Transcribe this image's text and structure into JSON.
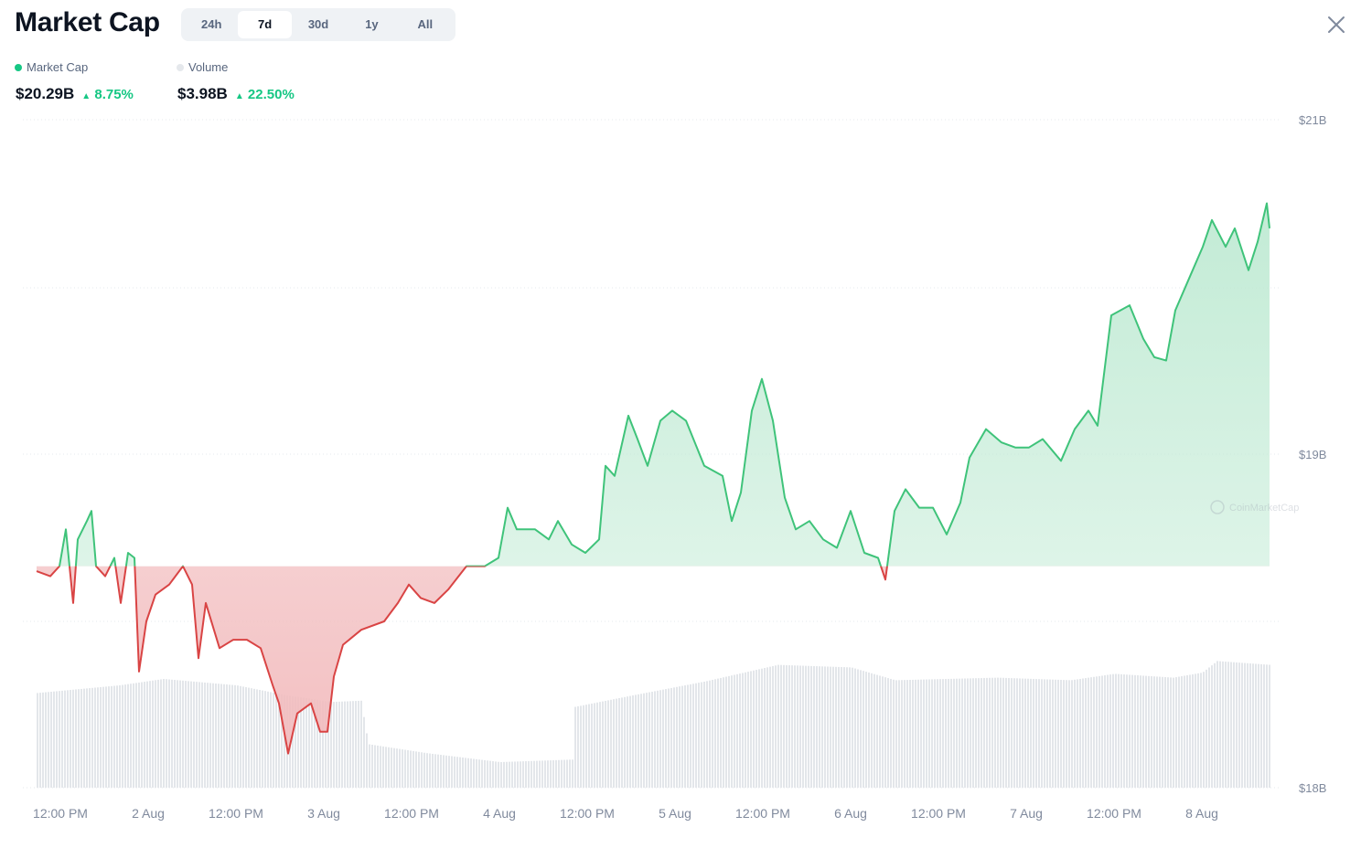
{
  "header": {
    "title": "Market Cap",
    "tabs": [
      "24h",
      "7d",
      "30d",
      "1y",
      "All"
    ],
    "active_tab": "7d"
  },
  "legend": {
    "market_cap": {
      "label": "Market Cap",
      "value": "$20.29B",
      "change": "8.75%",
      "color": "#16c784"
    },
    "volume": {
      "label": "Volume",
      "value": "$3.98B",
      "change": "22.50%",
      "color": "#e5e8ec"
    }
  },
  "colors": {
    "up": "#3fc37a",
    "down": "#d94444",
    "up_fill": "#bfead3",
    "down_fill": "#f2bcbe",
    "volume": "#e3e6ea"
  },
  "watermark": "CoinMarketCap",
  "chart_data": {
    "type": "area",
    "title": "Market Cap",
    "x_unit": "hours since 1 Aug 00:00",
    "y_unit": "USD billions",
    "baseline": 18.33,
    "y_ticks": [
      "$21B",
      "$19B",
      "$18B"
    ],
    "x_ticks": [
      "12:00 PM",
      "2 Aug",
      "12:00 PM",
      "3 Aug",
      "12:00 PM",
      "4 Aug",
      "12:00 PM",
      "5 Aug",
      "12:00 PM",
      "6 Aug",
      "12:00 PM",
      "7 Aug",
      "12:00 PM",
      "8 Aug"
    ],
    "x_tick_hours": [
      12,
      24,
      36,
      48,
      60,
      72,
      84,
      96,
      108,
      120,
      132,
      144,
      156,
      168
    ],
    "market_cap": [
      [
        8.75,
        18.3
      ],
      [
        10.63,
        18.27
      ],
      [
        11.88,
        18.33
      ],
      [
        12.75,
        18.55
      ],
      [
        13.75,
        18.11
      ],
      [
        14.38,
        18.49
      ],
      [
        15.63,
        18.6
      ],
      [
        16.25,
        18.66
      ],
      [
        16.88,
        18.33
      ],
      [
        18.13,
        18.27
      ],
      [
        19.38,
        18.38
      ],
      [
        20.25,
        18.11
      ],
      [
        21.25,
        18.41
      ],
      [
        22.13,
        18.38
      ],
      [
        22.75,
        17.7
      ],
      [
        23.75,
        18.0
      ],
      [
        25.0,
        18.16
      ],
      [
        26.88,
        18.22
      ],
      [
        28.75,
        18.33
      ],
      [
        30.0,
        18.22
      ],
      [
        30.88,
        17.78
      ],
      [
        31.88,
        18.11
      ],
      [
        33.75,
        17.84
      ],
      [
        35.63,
        17.89
      ],
      [
        37.5,
        17.89
      ],
      [
        39.38,
        17.84
      ],
      [
        41.0,
        17.62
      ],
      [
        41.88,
        17.51
      ],
      [
        43.13,
        17.21
      ],
      [
        44.38,
        17.45
      ],
      [
        46.25,
        17.51
      ],
      [
        47.5,
        17.34
      ],
      [
        48.5,
        17.34
      ],
      [
        49.38,
        17.67
      ],
      [
        50.63,
        17.86
      ],
      [
        53.13,
        17.95
      ],
      [
        56.25,
        18.0
      ],
      [
        58.13,
        18.11
      ],
      [
        59.63,
        18.22
      ],
      [
        61.25,
        18.14
      ],
      [
        63.13,
        18.11
      ],
      [
        65.0,
        18.19
      ],
      [
        67.5,
        18.33
      ],
      [
        70.0,
        18.33
      ],
      [
        71.88,
        18.38
      ],
      [
        73.13,
        18.68
      ],
      [
        74.38,
        18.55
      ],
      [
        76.88,
        18.55
      ],
      [
        78.75,
        18.49
      ],
      [
        80.0,
        18.6
      ],
      [
        81.88,
        18.46
      ],
      [
        83.75,
        18.41
      ],
      [
        85.63,
        18.49
      ],
      [
        86.5,
        18.93
      ],
      [
        87.75,
        18.87
      ],
      [
        89.63,
        19.23
      ],
      [
        90.88,
        19.09
      ],
      [
        92.25,
        18.93
      ],
      [
        94.0,
        19.2
      ],
      [
        95.63,
        19.26
      ],
      [
        97.5,
        19.2
      ],
      [
        100.0,
        18.93
      ],
      [
        102.5,
        18.87
      ],
      [
        103.75,
        18.6
      ],
      [
        105.0,
        18.77
      ],
      [
        106.5,
        19.26
      ],
      [
        107.88,
        19.45
      ],
      [
        109.38,
        19.2
      ],
      [
        111.0,
        18.74
      ],
      [
        112.5,
        18.55
      ],
      [
        114.38,
        18.6
      ],
      [
        116.25,
        18.49
      ],
      [
        118.13,
        18.44
      ],
      [
        120.0,
        18.66
      ],
      [
        121.88,
        18.41
      ],
      [
        123.75,
        18.38
      ],
      [
        124.75,
        18.25
      ],
      [
        126.0,
        18.66
      ],
      [
        127.5,
        18.79
      ],
      [
        129.38,
        18.68
      ],
      [
        131.25,
        18.68
      ],
      [
        133.13,
        18.52
      ],
      [
        135.0,
        18.71
      ],
      [
        136.25,
        18.98
      ],
      [
        138.5,
        19.15
      ],
      [
        140.63,
        19.07
      ],
      [
        142.5,
        19.04
      ],
      [
        144.38,
        19.04
      ],
      [
        146.25,
        19.09
      ],
      [
        148.75,
        18.96
      ],
      [
        150.63,
        19.15
      ],
      [
        152.5,
        19.26
      ],
      [
        153.75,
        19.17
      ],
      [
        155.63,
        19.83
      ],
      [
        158.13,
        19.89
      ],
      [
        160.0,
        19.69
      ],
      [
        161.5,
        19.58
      ],
      [
        163.13,
        19.56
      ],
      [
        164.38,
        19.86
      ],
      [
        166.25,
        20.05
      ],
      [
        168.13,
        20.24
      ],
      [
        169.38,
        20.4
      ],
      [
        171.25,
        20.24
      ],
      [
        172.5,
        20.35
      ],
      [
        174.38,
        20.1
      ],
      [
        175.63,
        20.27
      ],
      [
        176.88,
        20.5
      ],
      [
        177.25,
        20.35
      ]
    ],
    "volume_relative": [
      [
        8.75,
        0.74
      ],
      [
        20,
        0.8
      ],
      [
        26,
        0.85
      ],
      [
        36,
        0.8
      ],
      [
        43,
        0.72
      ],
      [
        49,
        0.67
      ],
      [
        53,
        0.68
      ],
      [
        54,
        0.34
      ],
      [
        62,
        0.27
      ],
      [
        72,
        0.2
      ],
      [
        82,
        0.22
      ],
      [
        82.1,
        0.63
      ],
      [
        90,
        0.72
      ],
      [
        100,
        0.83
      ],
      [
        110,
        0.96
      ],
      [
        120,
        0.94
      ],
      [
        126,
        0.84
      ],
      [
        140,
        0.86
      ],
      [
        150,
        0.84
      ],
      [
        156,
        0.89
      ],
      [
        164,
        0.86
      ],
      [
        168,
        0.9
      ],
      [
        170,
        0.99
      ],
      [
        177.25,
        0.96
      ]
    ]
  }
}
